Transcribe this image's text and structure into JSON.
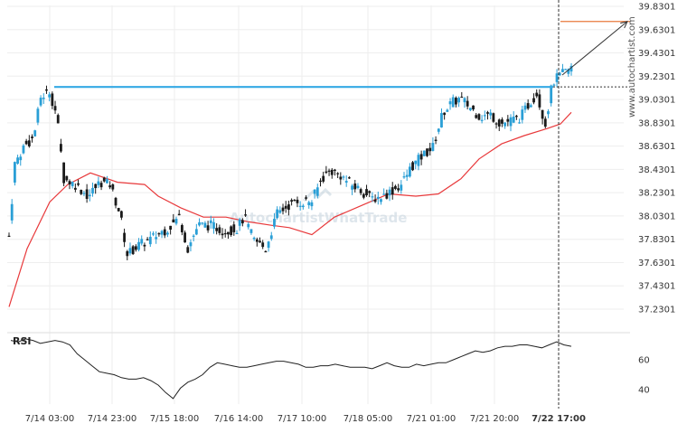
{
  "chart_data": {
    "type": "candlestick",
    "price_ticks": [
      "39.8301",
      "39.6301",
      "39.4301",
      "39.2301",
      "39.0301",
      "38.8301",
      "38.6301",
      "38.4301",
      "38.2301",
      "38.0301",
      "37.8301",
      "37.6301",
      "37.4301",
      "37.2301"
    ],
    "time_ticks": [
      "7/14 03:00",
      "7/14 23:00",
      "7/15 18:00",
      "7/16 14:00",
      "7/17 10:00",
      "7/18 05:00",
      "7/21 01:00",
      "7/21 20:00",
      "7/22 17:00"
    ],
    "ylim": [
      37.08,
      39.86
    ],
    "resistance_level": 39.138,
    "target_level": 39.7,
    "current_price": 39.138,
    "watermark": "AutochartistWhatTrade",
    "side_label": "www.autochartist.com",
    "rsi": {
      "label": "RSI",
      "ticks": [
        "60",
        "40"
      ],
      "ylim": [
        28,
        85
      ],
      "values": [
        73,
        72,
        74,
        73,
        71,
        72,
        73,
        72,
        70,
        64,
        60,
        56,
        52,
        51,
        50,
        48,
        47,
        47,
        48,
        46,
        43,
        38,
        34,
        41,
        45,
        47,
        50,
        55,
        58,
        57,
        56,
        55,
        55,
        56,
        57,
        58,
        59,
        59,
        58,
        57,
        55,
        55,
        56,
        56,
        57,
        56,
        55,
        55,
        55,
        54,
        56,
        58,
        56,
        55,
        55,
        57,
        56,
        57,
        58,
        58,
        60,
        62,
        64,
        66,
        65,
        66,
        68,
        69,
        69,
        70,
        70,
        69,
        68,
        70,
        72,
        70,
        69
      ]
    },
    "colors": {
      "candle_up": "#2a9fd6",
      "candle_down": "#1a1a1a",
      "moving_average": "#e8393b",
      "resistance": "#35a9e4",
      "target": "#e8793d",
      "rsi_line": "#222222"
    }
  }
}
